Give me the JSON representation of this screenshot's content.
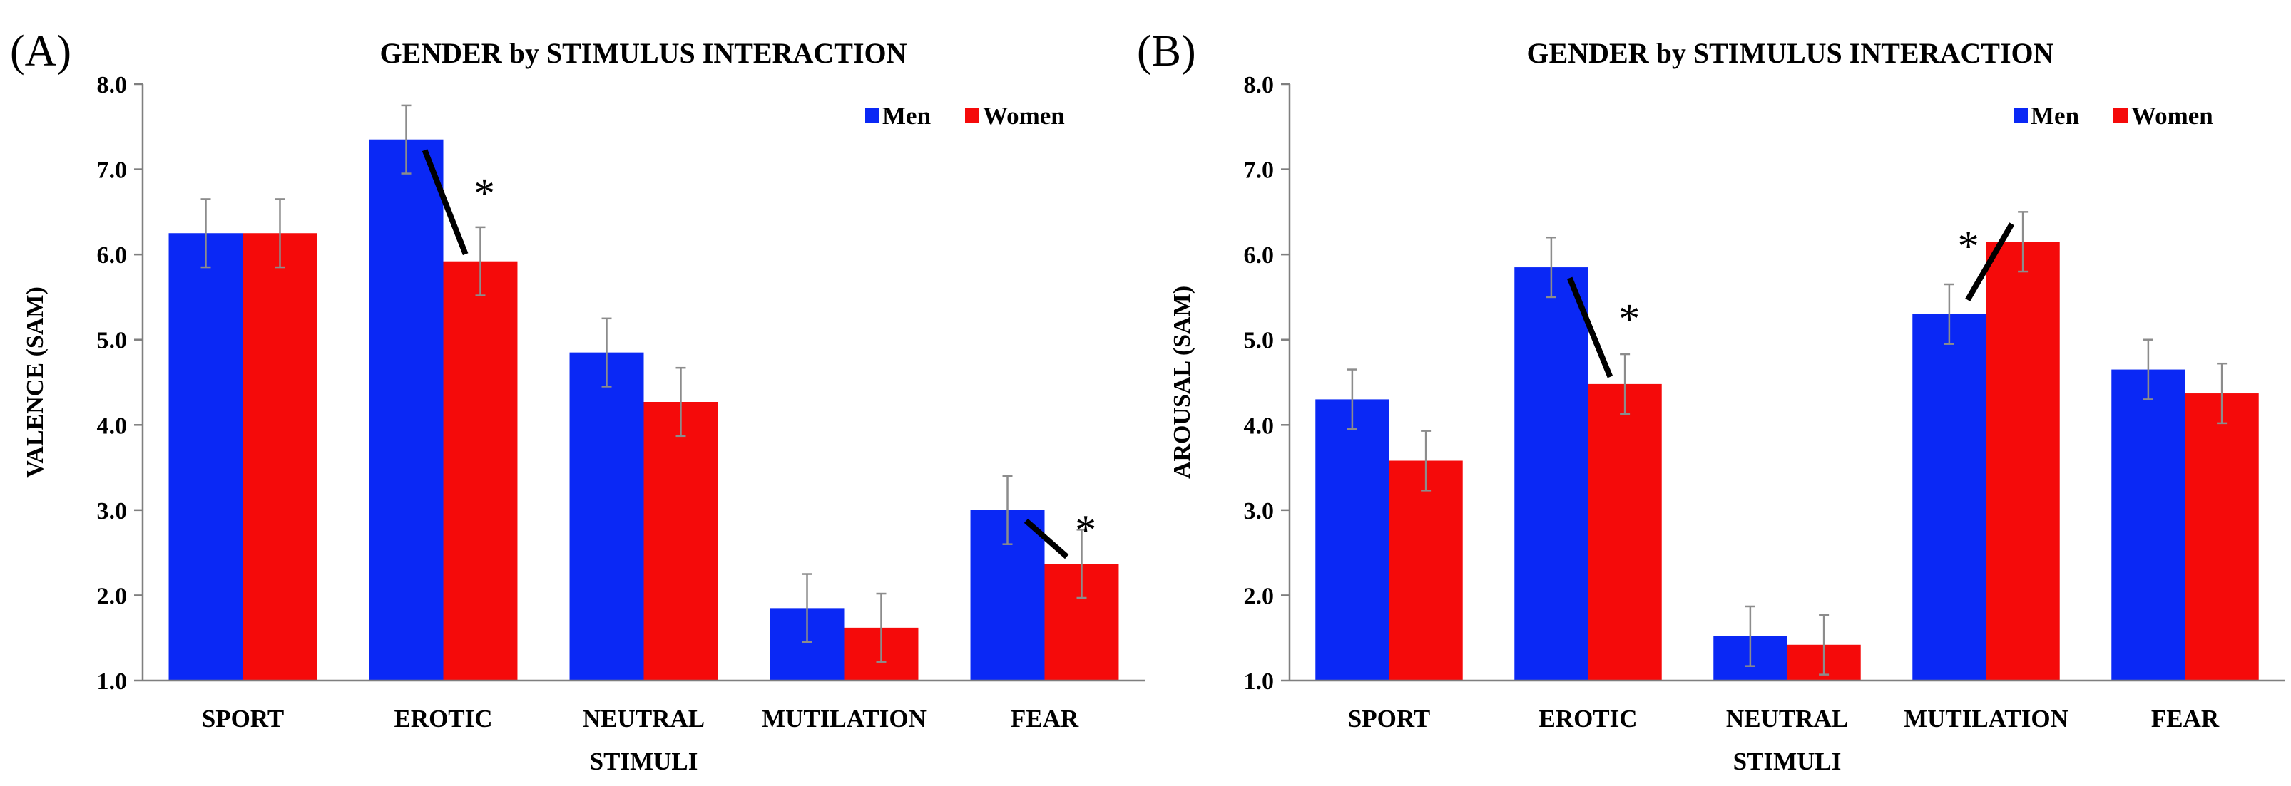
{
  "panels": [
    {
      "label": "(A)"
    },
    {
      "label": "(B)"
    }
  ],
  "colors": {
    "men": "#0A28F5",
    "women": "#F50A0A",
    "axis": "#7f7f7f",
    "errorbar": "#8c8c8c",
    "sigline": "#000000"
  },
  "chart_data": [
    {
      "type": "bar",
      "title": "GENDER by STIMULUS INTERACTION",
      "xlabel": "STIMULI",
      "ylabel": "VALENCE (SAM)",
      "ylim": [
        1.0,
        8.0
      ],
      "yticks": [
        "1.0",
        "2.0",
        "3.0",
        "4.0",
        "5.0",
        "6.0",
        "7.0",
        "8.0"
      ],
      "categories": [
        "SPORT",
        "EROTIC",
        "NEUTRAL",
        "MUTILATION",
        "FEAR"
      ],
      "legend": "top-right",
      "series": [
        {
          "name": "Men",
          "values": [
            6.25,
            7.35,
            4.85,
            1.85,
            3.0
          ],
          "errors": [
            0.4,
            0.4,
            0.4,
            0.4,
            0.4
          ]
        },
        {
          "name": "Women",
          "values": [
            6.25,
            5.92,
            4.27,
            1.62,
            2.37
          ],
          "errors": [
            0.4,
            0.4,
            0.4,
            0.4,
            0.4
          ]
        }
      ],
      "significance": [
        {
          "category": "EROTIC",
          "marker": "*"
        },
        {
          "category": "FEAR",
          "marker": "*"
        }
      ]
    },
    {
      "type": "bar",
      "title": "GENDER by STIMULUS INTERACTION",
      "xlabel": "STIMULI",
      "ylabel": "AROUSAL (SAM)",
      "ylim": [
        1.0,
        8.0
      ],
      "yticks": [
        "1.0",
        "2.0",
        "3.0",
        "4.0",
        "5.0",
        "6.0",
        "7.0",
        "8.0"
      ],
      "categories": [
        "SPORT",
        "EROTIC",
        "NEUTRAL",
        "MUTILATION",
        "FEAR"
      ],
      "legend": "top-right",
      "series": [
        {
          "name": "Men",
          "values": [
            4.3,
            5.85,
            1.52,
            5.3,
            4.65
          ],
          "errors": [
            0.35,
            0.35,
            0.35,
            0.35,
            0.35
          ]
        },
        {
          "name": "Women",
          "values": [
            3.58,
            4.48,
            1.42,
            6.15,
            4.37
          ],
          "errors": [
            0.35,
            0.35,
            0.35,
            0.35,
            0.35
          ]
        }
      ],
      "significance": [
        {
          "category": "EROTIC",
          "marker": "*"
        },
        {
          "category": "MUTILATION",
          "marker": "*"
        }
      ]
    }
  ]
}
